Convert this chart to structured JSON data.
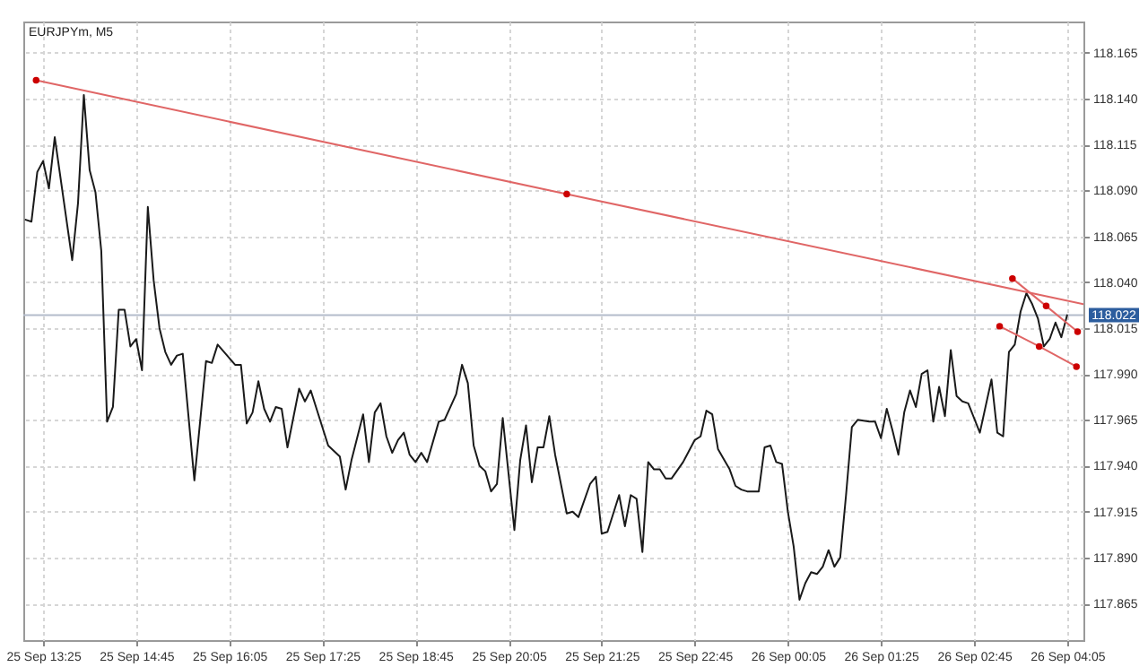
{
  "chart_data": {
    "type": "line",
    "title": "EURJPYm, M5",
    "x": [
      "--09-25T13:10",
      "--09-25T13:15",
      "--09-25T13:20",
      "--09-25T13:25",
      "--09-25T13:30",
      "--09-25T13:35",
      "--09-25T13:50",
      "--09-25T13:55",
      "--09-25T14:00",
      "--09-25T14:05",
      "--09-25T14:10",
      "--09-25T14:15",
      "--09-25T14:20",
      "--09-25T14:25",
      "--09-25T14:30",
      "--09-25T14:35",
      "--09-25T14:40",
      "--09-25T14:45",
      "--09-25T14:50",
      "--09-25T14:55",
      "--09-25T15:00",
      "--09-25T15:05",
      "--09-25T15:10",
      "--09-25T15:15",
      "--09-25T15:20",
      "--09-25T15:25",
      "--09-25T15:35",
      "--09-25T15:45",
      "--09-25T15:50",
      "--09-25T15:55",
      "--09-25T16:10",
      "--09-25T16:15",
      "--09-25T16:20",
      "--09-25T16:25",
      "--09-25T16:30",
      "--09-25T16:35",
      "--09-25T16:40",
      "--09-25T16:45",
      "--09-25T16:50",
      "--09-25T16:55",
      "--09-25T17:00",
      "--09-25T17:05",
      "--09-25T17:10",
      "--09-25T17:15",
      "--09-25T17:30",
      "--09-25T17:40",
      "--09-25T17:45",
      "--09-25T17:50",
      "--09-25T18:00",
      "--09-25T18:05",
      "--09-25T18:10",
      "--09-25T18:15",
      "--09-25T18:20",
      "--09-25T18:25",
      "--09-25T18:30",
      "--09-25T18:35",
      "--09-25T18:40",
      "--09-25T18:45",
      "--09-25T18:50",
      "--09-25T18:55",
      "--09-25T19:05",
      "--09-25T19:10",
      "--09-25T19:20",
      "--09-25T19:25",
      "--09-25T19:30",
      "--09-25T19:35",
      "--09-25T19:40",
      "--09-25T19:45",
      "--09-25T19:50",
      "--09-25T19:55",
      "--09-25T20:00",
      "--09-25T20:10",
      "--09-25T20:15",
      "--09-25T20:20",
      "--09-25T20:25",
      "--09-25T20:30",
      "--09-25T20:35",
      "--09-25T20:40",
      "--09-25T20:45",
      "--09-25T20:55",
      "--09-25T21:00",
      "--09-25T21:05",
      "--09-25T21:15",
      "--09-25T21:20",
      "--09-25T21:25",
      "--09-25T21:30",
      "--09-25T21:40",
      "--09-25T21:45",
      "--09-25T21:50",
      "--09-25T21:55",
      "--09-25T22:00",
      "--09-25T22:05",
      "--09-25T22:10",
      "--09-25T22:15",
      "--09-25T22:20",
      "--09-25T22:25",
      "--09-25T22:35",
      "--09-25T22:45",
      "--09-25T22:50",
      "--09-25T22:55",
      "--09-25T23:00",
      "--09-25T23:05",
      "--09-25T23:15",
      "--09-25T23:20",
      "--09-25T23:25",
      "--09-25T23:30",
      "--09-25T23:40",
      "--09-25T23:45",
      "--09-25T23:50",
      "--09-25T23:55",
      "--09-26T00:00",
      "--09-26T00:05",
      "--09-26T00:10",
      "--09-26T00:15",
      "--09-26T00:20",
      "--09-26T00:25",
      "--09-26T00:30",
      "--09-26T00:35",
      "--09-26T00:40",
      "--09-26T00:45",
      "--09-26T00:50",
      "--09-26T00:55",
      "--09-26T01:00",
      "--09-26T01:05",
      "--09-26T01:15",
      "--09-26T01:20",
      "--09-26T01:25",
      "--09-26T01:30",
      "--09-26T01:35",
      "--09-26T01:40",
      "--09-26T01:45",
      "--09-26T01:50",
      "--09-26T01:55",
      "--09-26T02:00",
      "--09-26T02:05",
      "--09-26T02:10",
      "--09-26T02:15",
      "--09-26T02:20",
      "--09-26T02:25",
      "--09-26T02:30",
      "--09-26T02:35",
      "--09-26T02:40",
      "--09-26T02:45",
      "--09-26T02:50",
      "--09-26T03:00",
      "--09-26T03:05",
      "--09-26T03:10",
      "--09-26T03:15",
      "--09-26T03:20",
      "--09-26T03:25",
      "--09-26T03:30",
      "--09-26T03:35",
      "--09-26T03:40",
      "--09-26T03:45",
      "--09-26T03:50",
      "--09-26T03:55",
      "--09-26T04:00",
      "--09-26T04:05"
    ],
    "series": [
      {
        "color": "#1a1a1a",
        "values": [
          118.074,
          118.073,
          118.1,
          118.106,
          118.091,
          118.119,
          118.052,
          118.083,
          118.142,
          118.101,
          118.089,
          118.057,
          117.964,
          117.972,
          118.025,
          118.025,
          118.005,
          118.009,
          117.992,
          118.081,
          118.041,
          118.015,
          118.002,
          117.995,
          118,
          118.001,
          117.932,
          117.997,
          117.996,
          118.006,
          117.995,
          117.995,
          117.963,
          117.969,
          117.986,
          117.971,
          117.964,
          117.972,
          117.971,
          117.95,
          117.966,
          117.982,
          117.975,
          117.981,
          117.951,
          117.945,
          117.927,
          117.943,
          117.968,
          117.942,
          117.969,
          117.974,
          117.956,
          117.947,
          117.954,
          117.958,
          117.946,
          117.942,
          117.947,
          117.942,
          117.964,
          117.965,
          117.979,
          117.995,
          117.985,
          117.951,
          117.94,
          117.937,
          117.926,
          117.93,
          117.966,
          117.905,
          117.943,
          117.962,
          117.931,
          117.95,
          117.95,
          117.967,
          117.946,
          117.914,
          117.915,
          117.912,
          117.93,
          117.934,
          117.903,
          117.904,
          117.924,
          117.907,
          117.924,
          117.922,
          117.893,
          117.942,
          117.938,
          117.938,
          117.933,
          117.933,
          117.942,
          117.954,
          117.956,
          117.97,
          117.968,
          117.949,
          117.938,
          117.929,
          117.927,
          117.926,
          117.926,
          117.95,
          117.951,
          117.942,
          117.941,
          117.915,
          117.896,
          117.867,
          117.876,
          117.882,
          117.881,
          117.885,
          117.894,
          117.885,
          117.89,
          117.924,
          117.961,
          117.965,
          117.964,
          117.964,
          117.955,
          117.971,
          117.959,
          117.946,
          117.969,
          117.981,
          117.972,
          117.99,
          117.992,
          117.964,
          117.983,
          117.967,
          118.003,
          117.978,
          117.975,
          117.974,
          117.966,
          117.958,
          117.987,
          117.958,
          117.956,
          118.002,
          118.006,
          118.024,
          118.034,
          118.028,
          118.02,
          118.005,
          118.009,
          118.018,
          118.01,
          118.022
        ]
      },
      {
        "type": "line",
        "color": "#e06666",
        "x": [
          "--09-25T13:19",
          "--09-25T20:55",
          "--09-26T04:19"
        ],
        "values": [
          118.15,
          118.088,
          118.028
        ]
      },
      {
        "type": "line",
        "color": "#e06666",
        "x": [
          "--09-26T03:18",
          "--09-26T03:47",
          "--09-26T04:14"
        ],
        "values": [
          118.042,
          118.027,
          118.013
        ]
      },
      {
        "type": "line",
        "color": "#e06666",
        "x": [
          "--09-26T03:07",
          "--09-26T03:41",
          "--09-26T04:13"
        ],
        "values": [
          118.016,
          118.005,
          117.994
        ]
      },
      {
        "type": "scatter",
        "marker": "circle",
        "color": "#cc0000",
        "x": [
          "--09-25T13:19",
          "--09-25T20:55",
          "--09-26T03:18",
          "--09-26T03:47",
          "--09-26T04:14",
          "--09-26T03:07",
          "--09-26T03:41",
          "--09-26T04:13"
        ],
        "values": [
          118.15,
          118.088,
          118.042,
          118.027,
          118.013,
          118.016,
          118.005,
          117.994
        ]
      }
    ],
    "xlim": [
      "--09-25T13:08",
      "--09-26T04:19"
    ],
    "ylim": [
      117.845,
      118.182
    ],
    "xticks": [
      {
        "value": "--09-25T13:25",
        "label": "25 Sep 13:25"
      },
      {
        "value": "--09-25T14:45",
        "label": "25 Sep 14:45"
      },
      {
        "value": "--09-25T16:05",
        "label": "25 Sep 16:05"
      },
      {
        "value": "--09-25T17:25",
        "label": "25 Sep 17:25"
      },
      {
        "value": "--09-25T18:45",
        "label": "25 Sep 18:45"
      },
      {
        "value": "--09-25T20:05",
        "label": "25 Sep 20:05"
      },
      {
        "value": "--09-25T21:25",
        "label": "25 Sep 21:25"
      },
      {
        "value": "--09-25T22:45",
        "label": "25 Sep 22:45"
      },
      {
        "value": "--09-26T00:05",
        "label": "26 Sep 00:05"
      },
      {
        "value": "--09-26T01:25",
        "label": "26 Sep 01:25"
      },
      {
        "value": "--09-26T02:45",
        "label": "26 Sep 02:45"
      },
      {
        "value": "--09-26T04:05",
        "label": "26 Sep 04:05"
      }
    ],
    "yticks": [
      117.865,
      {
        "value": 117.89,
        "label": "117.890"
      },
      117.915,
      {
        "value": 117.94,
        "label": "117.940"
      },
      117.965,
      {
        "value": 117.99,
        "label": "117.990"
      },
      118.015,
      {
        "value": 118.04,
        "label": "118.040"
      },
      118.065,
      {
        "value": 118.09,
        "label": "118.090"
      },
      118.115,
      {
        "value": 118.14,
        "label": "118.140"
      },
      118.165
    ],
    "grid": true,
    "ref_lines": [
      {
        "axis": "y",
        "value": 118.022,
        "label": "118.022",
        "color": "#b4bccb"
      }
    ]
  }
}
